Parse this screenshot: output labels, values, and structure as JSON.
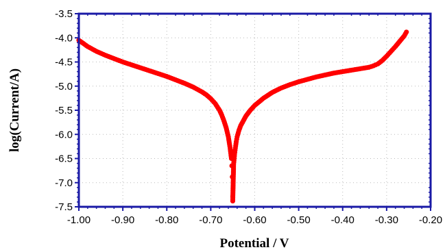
{
  "chart_data": {
    "type": "scatter",
    "title": "",
    "xlabel": "Potential / V",
    "ylabel": "log(Current/A)",
    "xlim": [
      -1.0,
      -0.2
    ],
    "ylim": [
      -7.5,
      -3.5
    ],
    "xticks": [
      -1.0,
      -0.9,
      -0.8,
      -0.7,
      -0.6,
      -0.5,
      -0.4,
      -0.3,
      -0.2
    ],
    "yticks": [
      -3.5,
      -4.0,
      -4.5,
      -5.0,
      -5.5,
      -6.0,
      -6.5,
      -7.0,
      -7.5
    ],
    "xtick_labels": [
      "-1.00",
      "-0.90",
      "-0.80",
      "-0.70",
      "-0.60",
      "-0.50",
      "-0.40",
      "-0.30",
      "-0.20"
    ],
    "ytick_labels": [
      "-3.5",
      "-4.0",
      "-4.5",
      "-5.0",
      "-5.5",
      "-6.0",
      "-6.5",
      "-7.0",
      "-7.5"
    ],
    "grid": true,
    "series": [
      {
        "color": "#ff0000",
        "points": [
          [
            -1.0,
            -4.05
          ],
          [
            -0.98,
            -4.18
          ],
          [
            -0.96,
            -4.28
          ],
          [
            -0.94,
            -4.36
          ],
          [
            -0.92,
            -4.43
          ],
          [
            -0.9,
            -4.5
          ],
          [
            -0.88,
            -4.56
          ],
          [
            -0.86,
            -4.62
          ],
          [
            -0.84,
            -4.68
          ],
          [
            -0.82,
            -4.74
          ],
          [
            -0.8,
            -4.8
          ],
          [
            -0.78,
            -4.87
          ],
          [
            -0.76,
            -4.94
          ],
          [
            -0.74,
            -5.02
          ],
          [
            -0.72,
            -5.12
          ],
          [
            -0.71,
            -5.18
          ],
          [
            -0.7,
            -5.26
          ],
          [
            -0.69,
            -5.36
          ],
          [
            -0.68,
            -5.5
          ],
          [
            -0.675,
            -5.6
          ],
          [
            -0.67,
            -5.72
          ],
          [
            -0.665,
            -5.86
          ],
          [
            -0.66,
            -6.05
          ],
          [
            -0.656,
            -6.28
          ],
          [
            -0.653,
            -6.5
          ],
          [
            -0.652,
            -6.65
          ],
          [
            -0.651,
            -6.88
          ],
          [
            -0.65,
            -7.28
          ],
          [
            -0.65,
            -7.38
          ],
          [
            -0.648,
            -6.62
          ],
          [
            -0.646,
            -6.42
          ],
          [
            -0.644,
            -6.28
          ],
          [
            -0.642,
            -6.15
          ],
          [
            -0.64,
            -6.05
          ],
          [
            -0.636,
            -5.92
          ],
          [
            -0.632,
            -5.82
          ],
          [
            -0.626,
            -5.72
          ],
          [
            -0.62,
            -5.62
          ],
          [
            -0.61,
            -5.5
          ],
          [
            -0.6,
            -5.4
          ],
          [
            -0.58,
            -5.25
          ],
          [
            -0.56,
            -5.13
          ],
          [
            -0.54,
            -5.04
          ],
          [
            -0.52,
            -4.97
          ],
          [
            -0.5,
            -4.91
          ],
          [
            -0.48,
            -4.86
          ],
          [
            -0.46,
            -4.81
          ],
          [
            -0.44,
            -4.77
          ],
          [
            -0.42,
            -4.73
          ],
          [
            -0.4,
            -4.7
          ],
          [
            -0.38,
            -4.67
          ],
          [
            -0.36,
            -4.64
          ],
          [
            -0.34,
            -4.61
          ],
          [
            -0.33,
            -4.58
          ],
          [
            -0.32,
            -4.54
          ],
          [
            -0.31,
            -4.47
          ],
          [
            -0.3,
            -4.38
          ],
          [
            -0.29,
            -4.28
          ],
          [
            -0.28,
            -4.18
          ],
          [
            -0.27,
            -4.07
          ],
          [
            -0.26,
            -3.96
          ],
          [
            -0.255,
            -3.88
          ]
        ]
      }
    ]
  }
}
